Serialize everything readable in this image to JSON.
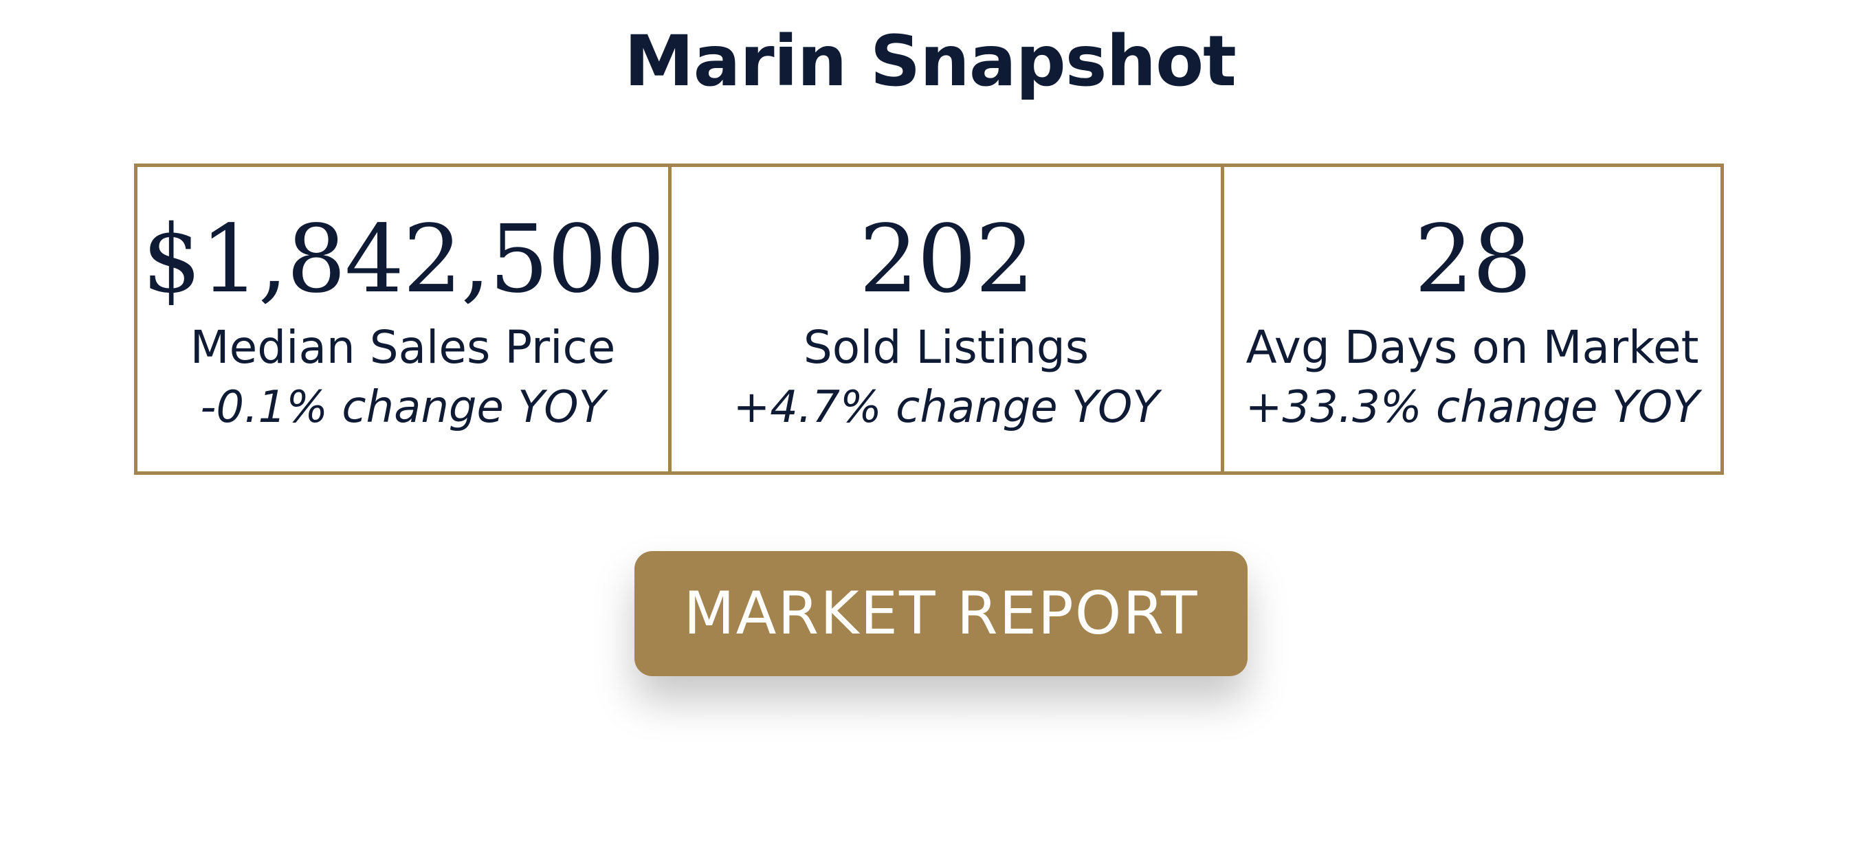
{
  "header": {
    "title": "Marin Snapshot"
  },
  "stats": [
    {
      "value": "$1,842,500",
      "label": "Median Sales Price",
      "change": "-0.1% change YOY"
    },
    {
      "value": "202",
      "label": "Sold Listings",
      "change": "+4.7% change YOY"
    },
    {
      "value": "28",
      "label": "Avg Days on Market",
      "change": "+33.3% change YOY"
    }
  ],
  "cta": {
    "label": "MARKET REPORT"
  },
  "colors": {
    "navy_text": "#0f1a35",
    "gold_accent": "#a4844e",
    "background": "#ffffff"
  }
}
